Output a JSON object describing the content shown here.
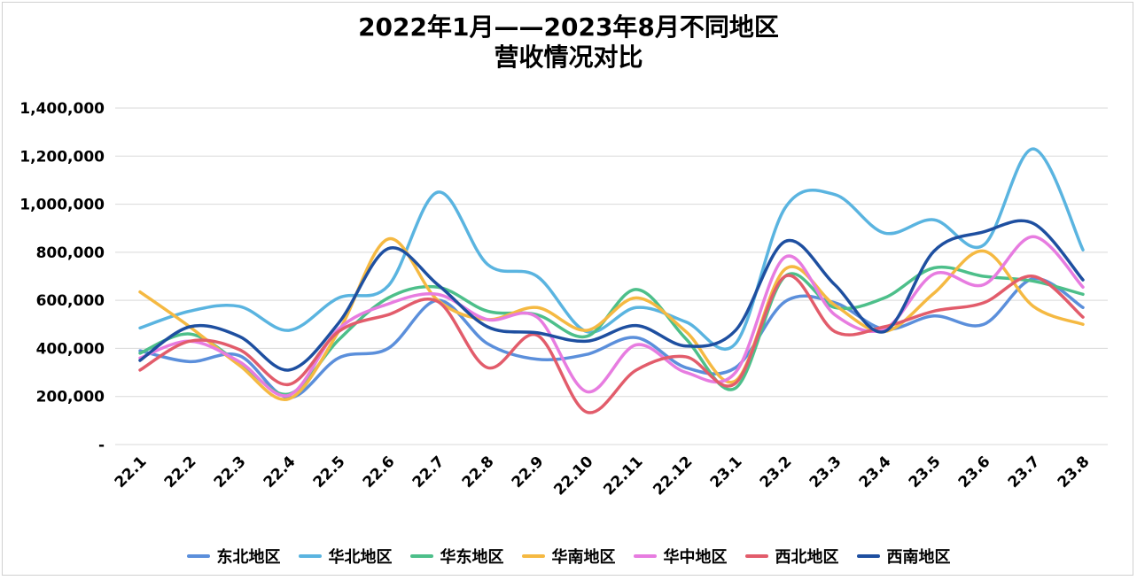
{
  "chart_data": {
    "type": "line",
    "title_line1": "2022年1月——2023年8月不同地区",
    "title_line2": "营收情况对比",
    "categories": [
      "22.1",
      "22.2",
      "22.3",
      "22.4",
      "22.5",
      "22.6",
      "22.7",
      "22.8",
      "22.9",
      "22.10",
      "22.11",
      "22.12",
      "23.1",
      "23.2",
      "23.3",
      "23.4",
      "23.5",
      "23.6",
      "23.7",
      "23.8"
    ],
    "y_ticks": [
      "-",
      "200,000",
      "400,000",
      "600,000",
      "800,000",
      "1,000,000",
      "1,200,000",
      "1,400,000"
    ],
    "ylim": [
      0,
      1400000
    ],
    "grid": true,
    "legend_position": "bottom",
    "series": [
      {
        "name": "东北地区",
        "color": "#5b8fdb",
        "values": [
          390000,
          345000,
          370000,
          195000,
          360000,
          400000,
          600000,
          420000,
          355000,
          375000,
          445000,
          320000,
          320000,
          595000,
          590000,
          480000,
          535000,
          500000,
          690000,
          570000
        ]
      },
      {
        "name": "华北地区",
        "color": "#5ab4e0",
        "values": [
          485000,
          555000,
          575000,
          475000,
          610000,
          660000,
          1050000,
          750000,
          700000,
          470000,
          570000,
          510000,
          420000,
          985000,
          1040000,
          880000,
          935000,
          830000,
          1230000,
          810000
        ]
      },
      {
        "name": "华东地区",
        "color": "#4dbf8a",
        "values": [
          380000,
          460000,
          340000,
          210000,
          435000,
          610000,
          655000,
          555000,
          540000,
          450000,
          645000,
          440000,
          235000,
          700000,
          570000,
          610000,
          735000,
          700000,
          680000,
          625000
        ]
      },
      {
        "name": "华南地区",
        "color": "#f5b942",
        "values": [
          635000,
          490000,
          330000,
          190000,
          470000,
          855000,
          600000,
          520000,
          570000,
          475000,
          610000,
          470000,
          265000,
          730000,
          580000,
          470000,
          630000,
          805000,
          575000,
          500000
        ]
      },
      {
        "name": "华中地区",
        "color": "#e77ce0",
        "values": [
          360000,
          430000,
          345000,
          205000,
          480000,
          585000,
          625000,
          520000,
          530000,
          220000,
          415000,
          300000,
          300000,
          780000,
          540000,
          480000,
          710000,
          665000,
          865000,
          655000
        ]
      },
      {
        "name": "西北地区",
        "color": "#e25c6b",
        "values": [
          310000,
          430000,
          395000,
          250000,
          470000,
          540000,
          595000,
          320000,
          455000,
          135000,
          310000,
          365000,
          255000,
          700000,
          470000,
          490000,
          555000,
          590000,
          700000,
          530000
        ]
      },
      {
        "name": "西南地区",
        "color": "#1e4fa0",
        "values": [
          350000,
          490000,
          450000,
          310000,
          505000,
          815000,
          665000,
          490000,
          465000,
          430000,
          495000,
          410000,
          475000,
          845000,
          665000,
          470000,
          805000,
          885000,
          920000,
          685000
        ]
      }
    ]
  }
}
